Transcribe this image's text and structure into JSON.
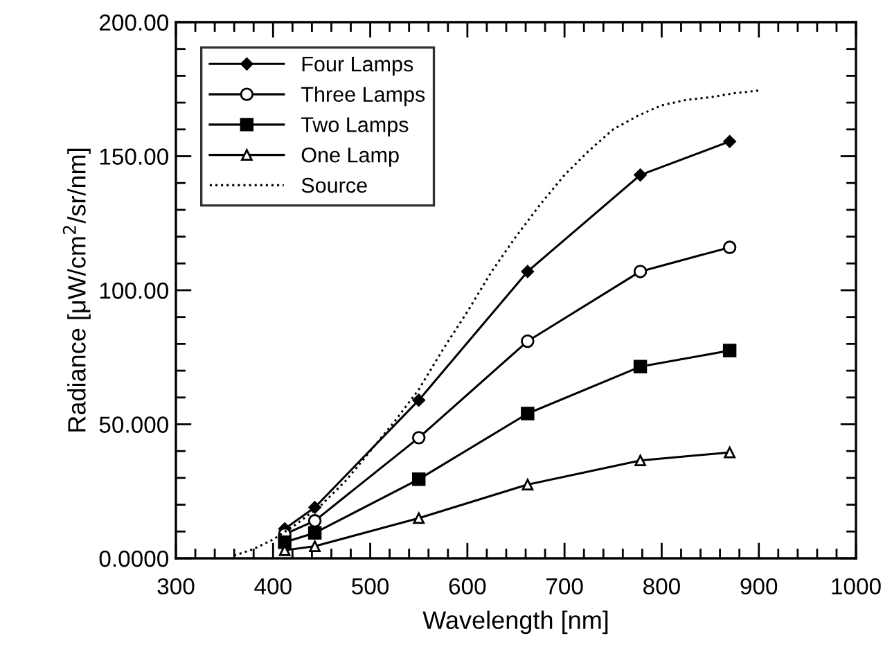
{
  "chart_data": {
    "type": "line",
    "xlabel": "Wavelength [nm]",
    "ylabel": "Radiance [μW/cm$^{2}$/sr/nm]",
    "xlim": [
      300,
      1000
    ],
    "ylim": [
      0,
      200
    ],
    "xticks": [
      300,
      {
        "value": 320,
        "label": null
      },
      {
        "value": 340,
        "label": null
      },
      {
        "value": 360,
        "label": null
      },
      {
        "value": 380,
        "label": null
      },
      400,
      {
        "value": 420,
        "label": null
      },
      {
        "value": 440,
        "label": null
      },
      {
        "value": 460,
        "label": null
      },
      {
        "value": 480,
        "label": null
      },
      500,
      {
        "value": 520,
        "label": null
      },
      {
        "value": 540,
        "label": null
      },
      {
        "value": 560,
        "label": null
      },
      {
        "value": 580,
        "label": null
      },
      600,
      {
        "value": 620,
        "label": null
      },
      {
        "value": 640,
        "label": null
      },
      {
        "value": 660,
        "label": null
      },
      {
        "value": 680,
        "label": null
      },
      700,
      {
        "value": 720,
        "label": null
      },
      {
        "value": 740,
        "label": null
      },
      {
        "value": 760,
        "label": null
      },
      {
        "value": 780,
        "label": null
      },
      800,
      {
        "value": 820,
        "label": null
      },
      {
        "value": 840,
        "label": null
      },
      {
        "value": 860,
        "label": null
      },
      {
        "value": 880,
        "label": null
      },
      900,
      {
        "value": 920,
        "label": null
      },
      {
        "value": 940,
        "label": null
      },
      {
        "value": 960,
        "label": null
      },
      {
        "value": 980,
        "label": null
      },
      1000
    ],
    "yticks": [
      {
        "value": 0,
        "label": "0.0000"
      },
      {
        "value": 10,
        "label": null
      },
      {
        "value": 20,
        "label": null
      },
      {
        "value": 30,
        "label": null
      },
      {
        "value": 40,
        "label": null
      },
      {
        "value": 50,
        "label": "50.000"
      },
      {
        "value": 60,
        "label": null
      },
      {
        "value": 70,
        "label": null
      },
      {
        "value": 80,
        "label": null
      },
      {
        "value": 90,
        "label": null
      },
      {
        "value": 100,
        "label": "100.00"
      },
      {
        "value": 110,
        "label": null
      },
      {
        "value": 120,
        "label": null
      },
      {
        "value": 130,
        "label": null
      },
      {
        "value": 140,
        "label": null
      },
      {
        "value": 150,
        "label": "150.00"
      },
      {
        "value": 160,
        "label": null
      },
      {
        "value": 170,
        "label": null
      },
      {
        "value": 180,
        "label": null
      },
      {
        "value": 190,
        "label": null
      },
      {
        "value": 200,
        "label": "200.00"
      }
    ],
    "grid": false,
    "legend": "top left",
    "series": [
      {
        "name": "Four Lamps",
        "color": "#000000",
        "marker": "diamond",
        "line_style": "solid",
        "x": [
          412,
          443,
          550,
          662,
          778,
          870
        ],
        "values": [
          11,
          19,
          59,
          107,
          143,
          155.5
        ]
      },
      {
        "name": "Three Lamps",
        "color": "#000000",
        "marker": "circle",
        "line_style": "solid",
        "x": [
          412,
          443,
          550,
          662,
          778,
          870
        ],
        "values": [
          9,
          14,
          45,
          81,
          107,
          116
        ]
      },
      {
        "name": "Two Lamps",
        "color": "#000000",
        "marker": "square",
        "line_style": "solid",
        "x": [
          412,
          443,
          550,
          662,
          778,
          870
        ],
        "values": [
          6,
          9.5,
          29.5,
          54,
          71.5,
          77.5
        ]
      },
      {
        "name": "One Lamp",
        "color": "#000000",
        "marker": "triangle",
        "line_style": "solid",
        "x": [
          412,
          443,
          550,
          662,
          778,
          870
        ],
        "values": [
          3,
          4.5,
          15,
          27.5,
          36.5,
          39.5
        ]
      },
      {
        "name": "Source",
        "color": "#000000",
        "marker": "none",
        "line_style": "dotted",
        "x": [
          360,
          380,
          400,
          425,
          450,
          475,
          500,
          525,
          550,
          575,
          600,
          625,
          650,
          675,
          700,
          725,
          750,
          775,
          800,
          825,
          850,
          875,
          900
        ],
        "values": [
          1,
          3.5,
          7,
          13,
          20,
          29,
          40,
          51,
          63,
          78,
          92,
          107,
          120,
          132,
          143,
          152,
          160,
          165,
          169,
          171,
          172,
          173.5,
          174.5
        ]
      }
    ]
  }
}
